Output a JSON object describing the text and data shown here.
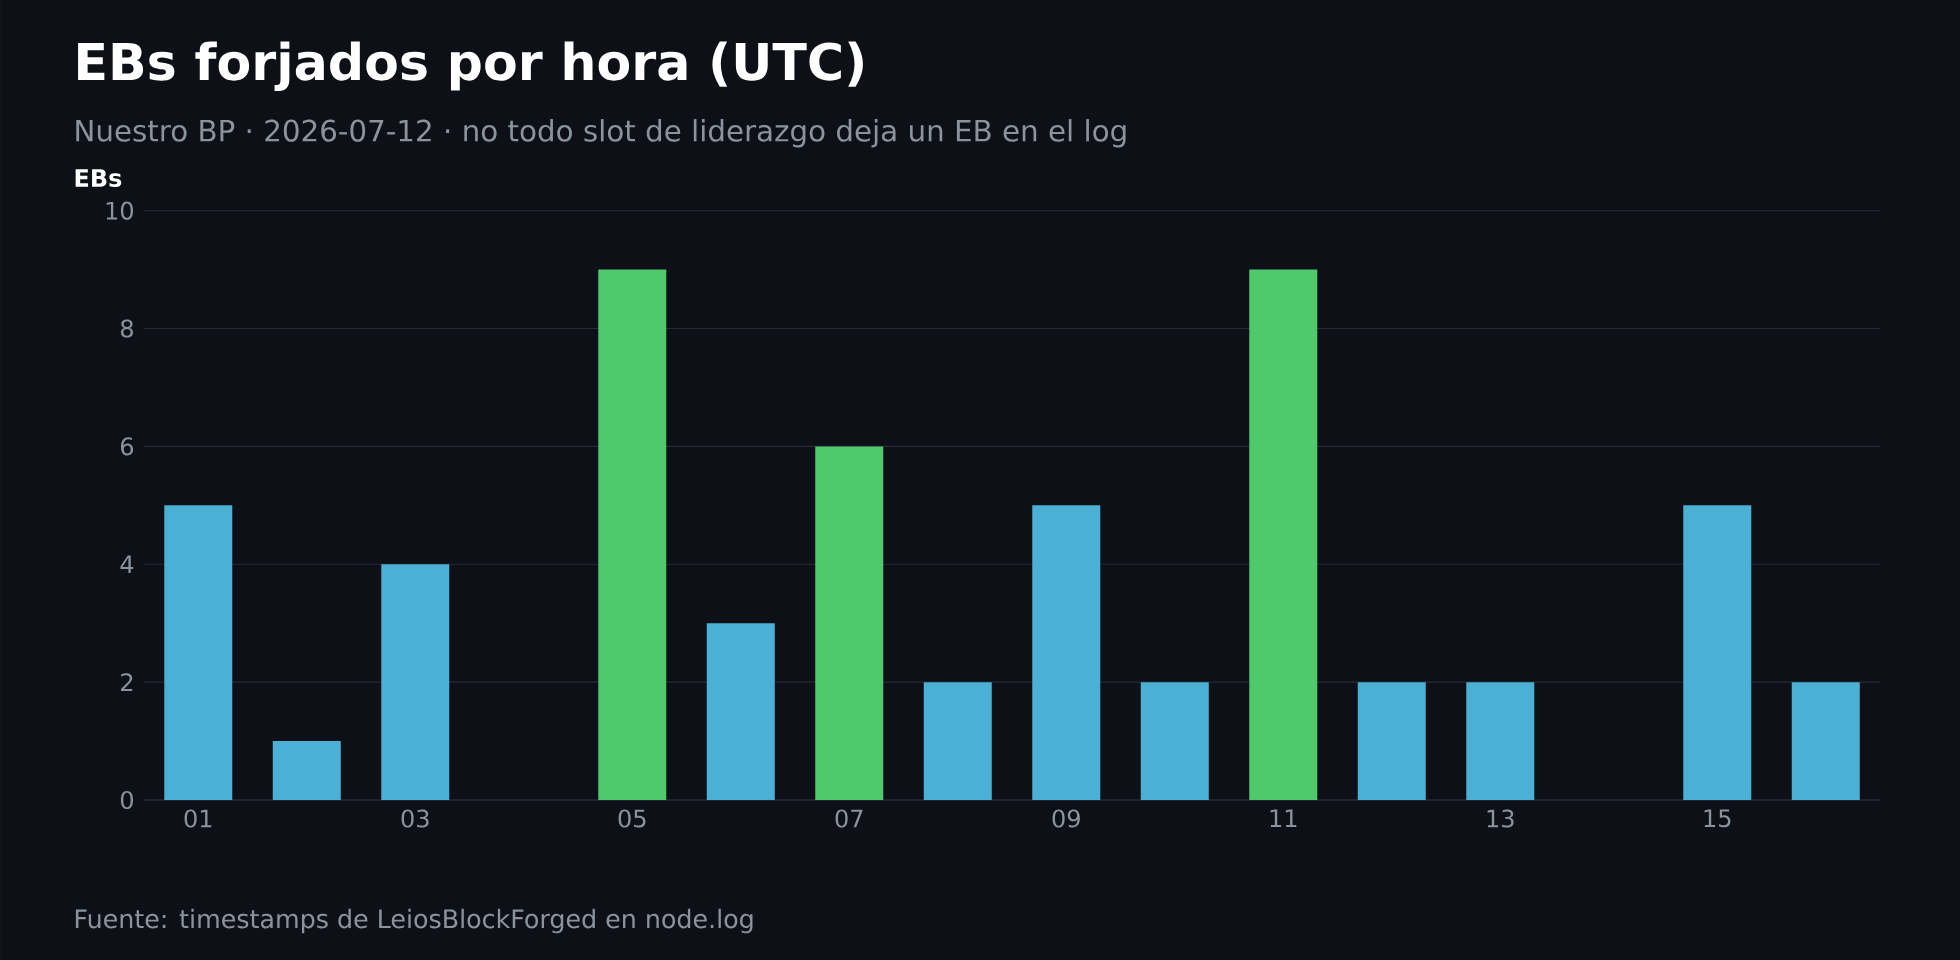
{
  "chart_data": {
    "type": "bar",
    "title": "EBs forjados por hora (UTC)",
    "subtitle": "Nuestro BP · 2026-07-12 · no todo slot de liderazgo deja un EB en el log",
    "ylabel": "EBs",
    "categories": [
      "01",
      null,
      "03",
      null,
      "05",
      null,
      "07",
      null,
      "09",
      null,
      "11",
      null,
      "13",
      null,
      "15",
      null
    ],
    "values": [
      5,
      1,
      4,
      0,
      9,
      3,
      6,
      2,
      5,
      2,
      9,
      2,
      2,
      0,
      5,
      2
    ],
    "colors": [
      "#4bb0d3",
      "#4bb0d3",
      "#4bb0d3",
      "#4bb0d3",
      "#4fc96b",
      "#4bb0d3",
      "#4fc96b",
      "#4bb0d3",
      "#4bb0d3",
      "#4bb0d3",
      "#4fc96b",
      "#4bb0d3",
      "#4bb0d3",
      "#4bb0d3",
      "#4bb0d3",
      "#4bb0d3"
    ],
    "ylim": [
      0,
      10
    ],
    "yticks": [
      0,
      2,
      4,
      6,
      8,
      10
    ],
    "grid": "y",
    "annotations": [
      "Fuente: timestamps de LeiosBlockForged en node.log"
    ]
  }
}
